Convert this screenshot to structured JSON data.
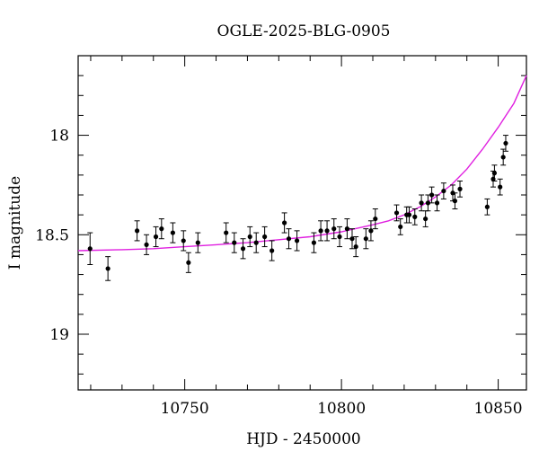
{
  "chart_data": {
    "type": "scatter",
    "title": "OGLE-2025-BLG-0905",
    "xlabel": "HJD - 2450000",
    "ylabel": "I magnitude",
    "xlim": [
      10716,
      10859
    ],
    "ylim": [
      19.28,
      17.6
    ],
    "y_inverted": true,
    "x_ticks": [
      10750,
      10800,
      10850
    ],
    "x_tick_labels": [
      "10750",
      "10800",
      "10850"
    ],
    "y_ticks": [
      18,
      18.5,
      19
    ],
    "y_tick_labels": [
      "18",
      "18.5",
      "19"
    ],
    "grid": false,
    "legend": "none",
    "colors": {
      "points": "#000000",
      "model": "#e020e0"
    },
    "series": [
      {
        "type": "scatter-errorbars",
        "x": [
          10719.8,
          10725.5,
          10734.8,
          10737.8,
          10740.8,
          10742.6,
          10746.2,
          10749.6,
          10751.2,
          10754.2,
          10763.2,
          10765.8,
          10768.6,
          10770.8,
          10772.8,
          10775.5,
          10777.8,
          10781.8,
          10783.2,
          10785.8,
          10791.2,
          10793.4,
          10795.4,
          10797.6,
          10799.4,
          10801.8,
          10803.4,
          10804.6,
          10807.8,
          10809.4,
          10810.8,
          10817.6,
          10818.8,
          10820.8,
          10821.6,
          10823.4,
          10825.5,
          10826.8,
          10827.6,
          10828.8,
          10830.5,
          10832.6,
          10835.5,
          10836.2,
          10837.8,
          10846.5,
          10848.4,
          10848.8,
          10850.6,
          10851.6,
          10852.4
        ],
        "y": [
          18.57,
          18.67,
          18.48,
          18.55,
          18.51,
          18.47,
          18.49,
          18.53,
          18.64,
          18.54,
          18.49,
          18.54,
          18.57,
          18.51,
          18.54,
          18.51,
          18.58,
          18.44,
          18.52,
          18.53,
          18.54,
          18.48,
          18.48,
          18.47,
          18.51,
          18.47,
          18.52,
          18.56,
          18.52,
          18.48,
          18.42,
          18.39,
          18.46,
          18.4,
          18.4,
          18.41,
          18.34,
          18.42,
          18.34,
          18.3,
          18.34,
          18.28,
          18.29,
          18.33,
          18.27,
          18.36,
          18.22,
          18.19,
          18.26,
          18.11,
          18.04
        ],
        "yerr": [
          0.08,
          0.06,
          0.05,
          0.05,
          0.05,
          0.05,
          0.05,
          0.05,
          0.05,
          0.05,
          0.05,
          0.05,
          0.05,
          0.05,
          0.05,
          0.05,
          0.05,
          0.05,
          0.05,
          0.05,
          0.05,
          0.05,
          0.05,
          0.05,
          0.05,
          0.05,
          0.05,
          0.05,
          0.05,
          0.05,
          0.05,
          0.04,
          0.04,
          0.04,
          0.04,
          0.04,
          0.04,
          0.04,
          0.04,
          0.04,
          0.04,
          0.04,
          0.04,
          0.04,
          0.04,
          0.04,
          0.04,
          0.04,
          0.04,
          0.04,
          0.04
        ]
      },
      {
        "type": "model-curve",
        "x": [
          10716,
          10730,
          10740,
          10750,
          10760,
          10770,
          10780,
          10790,
          10800,
          10810,
          10815,
          10820,
          10825,
          10830,
          10835,
          10840,
          10845,
          10850,
          10855,
          10859
        ],
        "y": [
          18.58,
          18.575,
          18.57,
          18.56,
          18.55,
          18.54,
          18.525,
          18.51,
          18.485,
          18.45,
          18.43,
          18.4,
          18.36,
          18.31,
          18.25,
          18.17,
          18.07,
          17.96,
          17.84,
          17.7
        ]
      }
    ]
  }
}
